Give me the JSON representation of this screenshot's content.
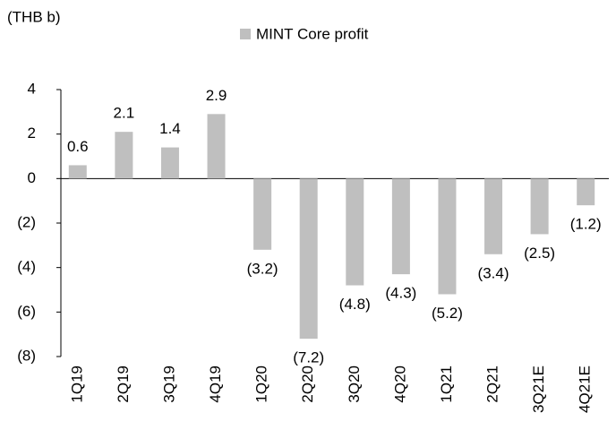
{
  "chart_data": {
    "type": "bar",
    "y_label": "(THB b)",
    "categories": [
      "1Q19",
      "2Q19",
      "3Q19",
      "4Q19",
      "1Q20",
      "2Q20",
      "3Q20",
      "4Q20",
      "1Q21",
      "2Q21",
      "3Q21E",
      "4Q21E"
    ],
    "series": [
      {
        "name": "MINT Core profit",
        "color": "#bfbfbf",
        "values": [
          0.6,
          2.1,
          1.4,
          2.9,
          -3.2,
          -7.2,
          -4.8,
          -4.3,
          -5.2,
          -3.4,
          -2.5,
          -1.2
        ],
        "value_labels": [
          "0.6",
          "2.1",
          "1.4",
          "2.9",
          "(3.2)",
          "(7.2)",
          "(4.8)",
          "(4.3)",
          "(5.2)",
          "(3.4)",
          "(2.5)",
          "(1.2)"
        ]
      }
    ],
    "ylim": [
      -8,
      4
    ],
    "yticks": [
      4,
      2,
      0,
      {
        "value": -2,
        "label": "(2)"
      },
      {
        "value": -4,
        "label": "(4)"
      },
      {
        "value": -6,
        "label": "(6)"
      },
      {
        "value": -8,
        "label": "(8)"
      }
    ],
    "legend": "top"
  }
}
